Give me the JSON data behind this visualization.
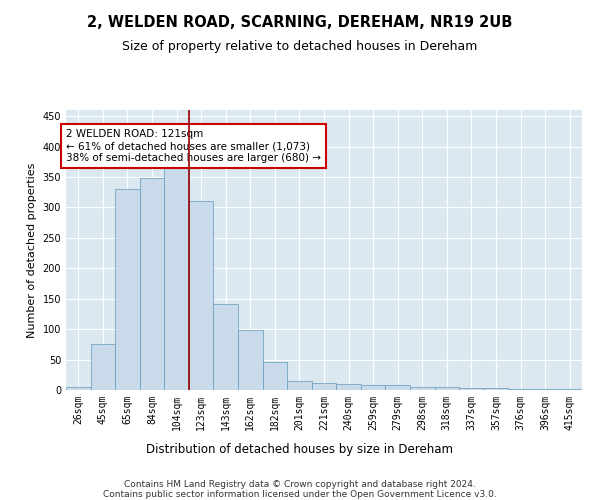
{
  "title": "2, WELDEN ROAD, SCARNING, DEREHAM, NR19 2UB",
  "subtitle": "Size of property relative to detached houses in Dereham",
  "xlabel": "Distribution of detached houses by size in Dereham",
  "ylabel": "Number of detached properties",
  "bar_color": "#c9daea",
  "bar_edge_color": "#6699bb",
  "vline_color": "#990000",
  "vline_x_index": 4.5,
  "annotation_text": "2 WELDEN ROAD: 121sqm\n← 61% of detached houses are smaller (1,073)\n38% of semi-detached houses are larger (680) →",
  "annotation_box_color": "white",
  "annotation_box_edge": "#cc0000",
  "footer1": "Contains HM Land Registry data © Crown copyright and database right 2024.",
  "footer2": "Contains public sector information licensed under the Open Government Licence v3.0.",
  "categories": [
    "26sqm",
    "45sqm",
    "65sqm",
    "84sqm",
    "104sqm",
    "123sqm",
    "143sqm",
    "162sqm",
    "182sqm",
    "201sqm",
    "221sqm",
    "240sqm",
    "259sqm",
    "279sqm",
    "298sqm",
    "318sqm",
    "337sqm",
    "357sqm",
    "376sqm",
    "396sqm",
    "415sqm"
  ],
  "values": [
    5,
    75,
    330,
    348,
    365,
    310,
    142,
    98,
    46,
    15,
    11,
    10,
    8,
    8,
    5,
    5,
    4,
    4,
    2,
    1,
    2
  ],
  "ylim": [
    0,
    460
  ],
  "yticks": [
    0,
    50,
    100,
    150,
    200,
    250,
    300,
    350,
    400,
    450
  ],
  "plot_bg_color": "#dce8f0",
  "grid_color": "white",
  "title_fontsize": 10.5,
  "subtitle_fontsize": 9,
  "tick_fontsize": 7,
  "ylabel_fontsize": 8,
  "xlabel_fontsize": 8.5,
  "footer_fontsize": 6.5,
  "annot_fontsize": 7.5
}
